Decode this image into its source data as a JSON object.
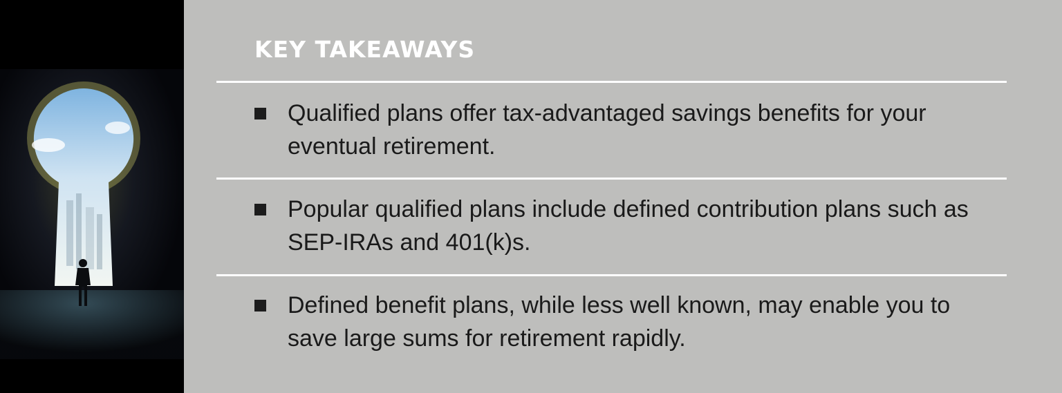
{
  "heading": "KEY TAKEAWAYS",
  "takeaways": [
    "Qualified plans offer tax-advantaged savings benefits for your eventual retirement.",
    "Popular qualified plans include defined contribution plans such as SEP-IRAs and 401(k)s.",
    "Defined benefit plans, while less well known, may enable you to save large sums for retirement rapidly."
  ],
  "colors": {
    "background": "#bebebc",
    "heading": "#ffffff",
    "text": "#1a1a1a",
    "bullet": "#1c1c1c",
    "divider": "#ffffff"
  }
}
